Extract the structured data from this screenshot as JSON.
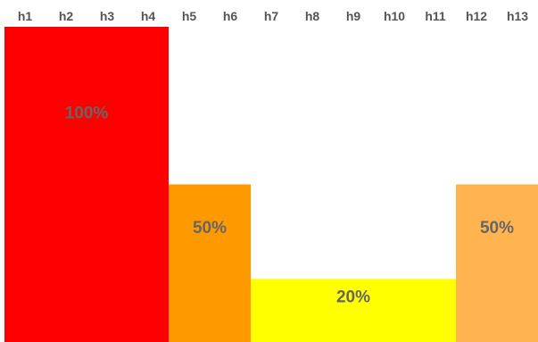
{
  "chart_data": {
    "type": "bar",
    "categories": [
      "h1",
      "h2",
      "h3",
      "h4",
      "h5",
      "h6",
      "h7",
      "h8",
      "h9",
      "h10",
      "h11",
      "h12",
      "h13"
    ],
    "segments": [
      {
        "start": "h1",
        "end": "h4",
        "value": 100,
        "label": "100%",
        "color": "#ff0000"
      },
      {
        "start": "h5",
        "end": "h6",
        "value": 50,
        "label": "50%",
        "color": "#ff9900"
      },
      {
        "start": "h7",
        "end": "h11",
        "value": 20,
        "label": "20%",
        "color": "#ffff00"
      },
      {
        "start": "h12",
        "end": "h13",
        "value": 50,
        "label": "50%",
        "color": "#ffb450"
      }
    ],
    "ylim": [
      0,
      100
    ],
    "grid": false,
    "legend": "none",
    "label_color": "#666666",
    "tick_color": "#555555"
  }
}
